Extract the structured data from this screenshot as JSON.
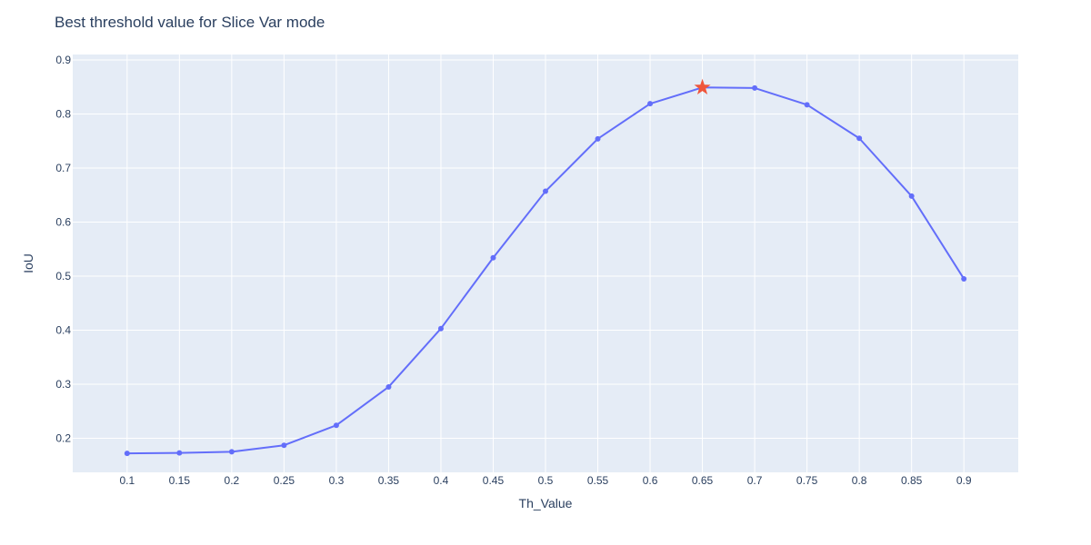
{
  "chart_data": {
    "type": "line",
    "title": "Best threshold value for Slice Var mode",
    "xlabel": "Th_Value",
    "ylabel": "IoU",
    "x": [
      "0.1",
      "0.15",
      "0.2",
      "0.25",
      "0.3",
      "0.35",
      "0.4",
      "0.45",
      "0.5",
      "0.55",
      "0.6",
      "0.65",
      "0.7",
      "0.75",
      "0.8",
      "0.85",
      "0.9"
    ],
    "series": [
      {
        "values": [
          0.172,
          0.173,
          0.175,
          0.187,
          0.224,
          0.295,
          0.403,
          0.534,
          0.657,
          0.754,
          0.819,
          0.849,
          0.848,
          0.817,
          0.755,
          0.648,
          0.495
        ],
        "color": "#636efa"
      }
    ],
    "highlight": {
      "x": "0.65",
      "y": 0.849,
      "marker": "star",
      "color": "#ef553b"
    },
    "yticks": [
      "0.2",
      "0.3",
      "0.4",
      "0.5",
      "0.6",
      "0.7",
      "0.8",
      "0.9"
    ],
    "ylim": [
      0.137,
      0.91
    ],
    "grid": true,
    "plot_bg": "#e5ecf6",
    "grid_color": "#ffffff",
    "text_color": "#2a3f5f"
  }
}
